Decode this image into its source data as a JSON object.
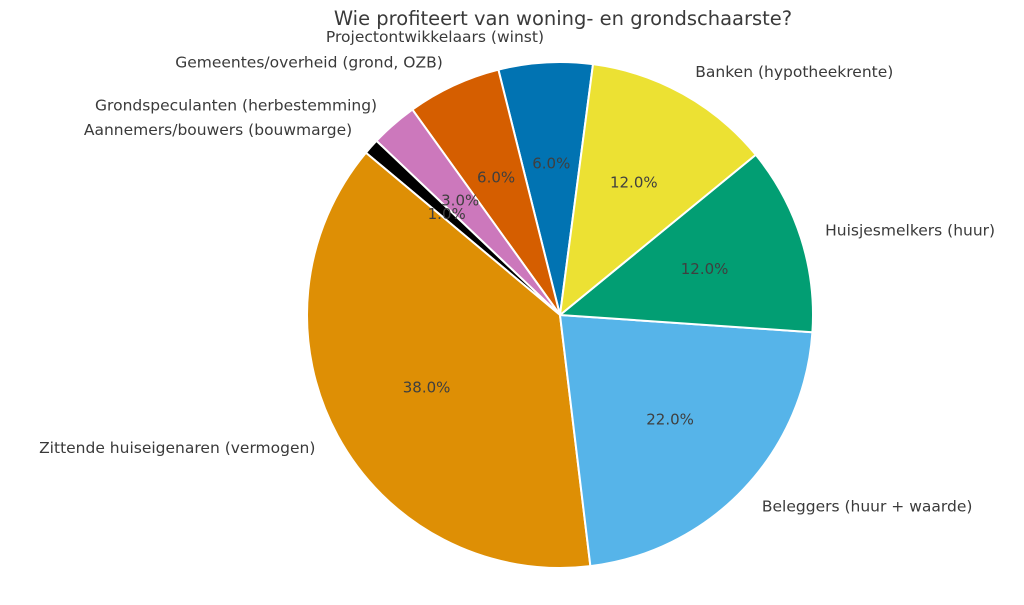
{
  "title": "Wie profiteert van woning- en grondschaarste?",
  "chart_data": {
    "type": "pie",
    "title": "Wie profiteert van woning- en grondschaarste?",
    "labels": [
      "Projectontwikkelaars (winst)",
      "Gemeentes/overheid (grond, OZB)",
      "Grondspeculanten (herbestemming)",
      "Aannemers/bouwers (bouwmarge)",
      "Zittende huiseigenaren (vermogen)",
      "Beleggers (huur + waarde)",
      "Huisjesmelkers (huur)",
      "Banken (hypotheekrente)"
    ],
    "values": [
      6,
      6,
      3,
      1,
      38,
      22,
      12,
      12
    ],
    "percent_labels": [
      "6.0%",
      "6.0%",
      "3.0%",
      "1.0%",
      "38.0%",
      "22.0%",
      "12.0%",
      "12.0%"
    ],
    "colors": [
      "#0173b2",
      "#d55e00",
      "#cc78bc",
      "#000000",
      "#de8f05",
      "#56b4e9",
      "#029e73",
      "#ece133"
    ],
    "start_angle_deg": 82.5,
    "counterclockwise": true,
    "label_distance": 1.1,
    "pct_distance": 0.6,
    "wedge_edge_color": "#ffffff",
    "text_color": "#3a3a3a",
    "background": "#ffffff",
    "legend": "none",
    "grid": false
  }
}
